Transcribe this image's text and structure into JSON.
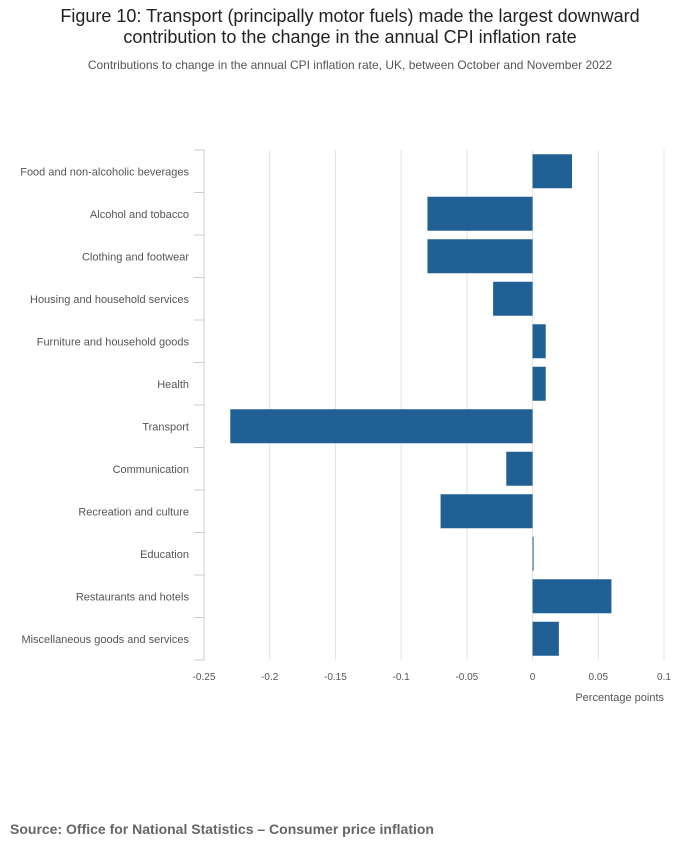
{
  "title_line1": "Figure 10: Transport (principally motor fuels) made the largest downward",
  "title_line2": "contribution to the change in the annual CPI inflation rate",
  "subtitle": "Contributions to change in the annual CPI inflation rate, UK, between October and November 2022",
  "source": "Source: Office for National Statistics – Consumer price inflation",
  "colors": {
    "bar": "#206095",
    "grid": "#e2e2e2",
    "axis": "#cccccc",
    "label": "#555555"
  },
  "chart_data": {
    "type": "bar",
    "orientation": "horizontal",
    "categories": [
      "Food and non-alcoholic beverages",
      "Alcohol and tobacco",
      "Clothing and footwear",
      "Housing and household services",
      "Furniture and household goods",
      "Health",
      "Transport",
      "Communication",
      "Recreation and culture",
      "Education",
      "Restaurants and hotels",
      "Miscellaneous goods and services"
    ],
    "values": [
      0.03,
      -0.08,
      -0.08,
      -0.03,
      0.01,
      0.01,
      -0.23,
      -0.02,
      -0.07,
      0.0,
      0.06,
      0.02
    ],
    "xlabel": "Percentage points",
    "ylabel": "",
    "xlim": [
      -0.25,
      0.1
    ],
    "xticks": [
      -0.25,
      -0.2,
      -0.15,
      -0.1,
      -0.05,
      0,
      0.05,
      0.1
    ],
    "xtick_labels": [
      "-0.25",
      "-0.2",
      "-0.15",
      "-0.1",
      "-0.05",
      "0",
      "0.05",
      "0.1"
    ],
    "grid": true,
    "legend": "none"
  }
}
